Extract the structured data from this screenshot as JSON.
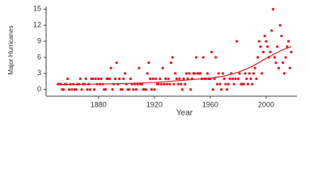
{
  "chart_data": {
    "type": "scatter",
    "x_label": "Year",
    "y_label": "Major Hurricanes",
    "xlim": [
      1846,
      2022
    ],
    "ylim": [
      -0.5,
      15.5
    ],
    "xticks": [
      1880,
      1920,
      1960,
      2000
    ],
    "yticks": [
      0,
      3,
      6,
      9,
      12,
      15
    ],
    "color": "#e31b23",
    "x": [
      1851,
      1852,
      1853,
      1854,
      1855,
      1856,
      1857,
      1858,
      1859,
      1860,
      1861,
      1862,
      1863,
      1864,
      1865,
      1866,
      1867,
      1868,
      1869,
      1870,
      1871,
      1872,
      1873,
      1874,
      1875,
      1876,
      1877,
      1878,
      1879,
      1880,
      1881,
      1882,
      1883,
      1884,
      1885,
      1886,
      1887,
      1888,
      1889,
      1890,
      1891,
      1892,
      1893,
      1894,
      1895,
      1896,
      1897,
      1898,
      1899,
      1900,
      1901,
      1902,
      1903,
      1904,
      1905,
      1906,
      1907,
      1908,
      1909,
      1910,
      1911,
      1912,
      1913,
      1914,
      1915,
      1916,
      1917,
      1918,
      1919,
      1920,
      1921,
      1922,
      1923,
      1924,
      1925,
      1926,
      1927,
      1928,
      1929,
      1930,
      1931,
      1932,
      1933,
      1934,
      1935,
      1936,
      1937,
      1938,
      1939,
      1940,
      1941,
      1942,
      1943,
      1944,
      1945,
      1946,
      1947,
      1948,
      1949,
      1950,
      1951,
      1952,
      1953,
      1954,
      1955,
      1956,
      1957,
      1958,
      1959,
      1960,
      1961,
      1962,
      1963,
      1964,
      1965,
      1966,
      1967,
      1968,
      1969,
      1970,
      1971,
      1972,
      1973,
      1974,
      1975,
      1976,
      1977,
      1978,
      1979,
      1980,
      1981,
      1982,
      1983,
      1984,
      1985,
      1986,
      1987,
      1988,
      1989,
      1990,
      1991,
      1992,
      1993,
      1994,
      1995,
      1996,
      1997,
      1998,
      1999,
      2000,
      2001,
      2002,
      2003,
      2004,
      2005,
      2006,
      2007,
      2008,
      2009,
      2010,
      2011,
      2012,
      2013,
      2014,
      2015,
      2016,
      2017,
      2018
    ],
    "values": [
      1,
      1,
      1,
      0,
      0,
      1,
      1,
      2,
      0,
      1,
      0,
      1,
      0,
      0,
      1,
      1,
      2,
      0,
      1,
      1,
      2,
      0,
      1,
      0,
      2,
      2,
      0,
      2,
      1,
      2,
      1,
      2,
      1,
      0,
      0,
      2,
      2,
      2,
      4,
      0,
      1,
      2,
      5,
      1,
      2,
      0,
      0,
      2,
      3,
      1,
      0,
      0,
      2,
      1,
      0,
      1,
      0,
      1,
      4,
      1,
      1,
      0,
      0,
      0,
      3,
      5,
      2,
      0,
      2,
      0,
      2,
      1,
      1,
      2,
      1,
      4,
      1,
      2,
      1,
      2,
      1,
      5,
      6,
      1,
      3,
      2,
      1,
      2,
      1,
      0,
      2,
      1,
      3,
      2,
      3,
      0,
      2,
      3,
      3,
      6,
      3,
      3,
      3,
      2,
      6,
      2,
      2,
      3,
      2,
      2,
      7,
      0,
      2,
      6,
      1,
      3,
      1,
      0,
      3,
      2,
      1,
      0,
      1,
      2,
      3,
      2,
      1,
      2,
      9,
      2,
      3,
      1,
      1,
      1,
      3,
      2,
      1,
      3,
      2,
      1,
      3,
      4,
      2,
      6,
      9,
      8,
      3,
      7,
      10,
      9,
      8,
      6,
      7,
      11,
      15,
      6,
      5,
      8,
      4,
      12,
      10,
      5,
      3,
      6,
      8,
      9,
      4,
      7
    ],
    "trend": {
      "color": "#e31b23",
      "x": [
        1851,
        1880,
        1900,
        1920,
        1940,
        1960,
        1970,
        1980,
        1990,
        2000,
        2010,
        2018
      ],
      "values": [
        0.9,
        1,
        1.1,
        1.3,
        1.7,
        2.1,
        2.5,
        3.2,
        4.3,
        5.8,
        7.2,
        8
      ]
    }
  }
}
